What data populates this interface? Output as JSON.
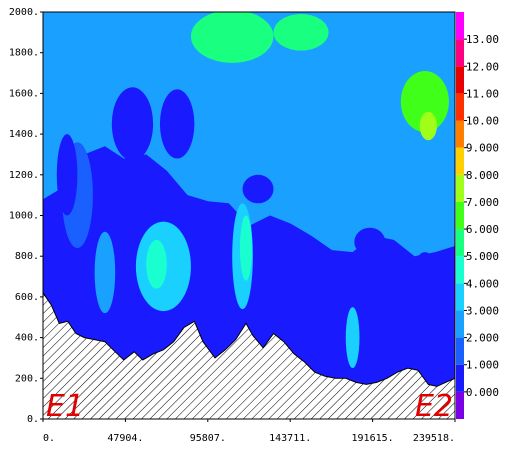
{
  "chart_data": {
    "type": "heatmap",
    "title": "",
    "xlabel": "",
    "ylabel": "",
    "x_ticks": [
      "0.",
      "47904.",
      "95807.",
      "143711.",
      "191615.",
      "239518."
    ],
    "y_ticks": [
      "0.",
      "200.",
      "400.",
      "600.",
      "800.",
      "1000.",
      "1200.",
      "1400.",
      "1600.",
      "1800.",
      "2000."
    ],
    "xlim": [
      0,
      239518
    ],
    "ylim": [
      0,
      2000
    ],
    "levels": [
      "0.000",
      "1.000",
      "2.000",
      "3.000",
      "4.000",
      "5.000",
      "6.000",
      "7.000",
      "8.000",
      "9.000",
      "10.00",
      "11.00",
      "12.00",
      "13.00"
    ],
    "level_colors": [
      "#7a00e6",
      "#1a1aff",
      "#1a60ff",
      "#1aa0ff",
      "#19d0ff",
      "#19ffd0",
      "#19ff80",
      "#40ff19",
      "#a0ff19",
      "#ffd000",
      "#ff8000",
      "#ff3000",
      "#e60000",
      "#ff0080",
      "#ff00ff"
    ],
    "annotations": [
      "E1",
      "E2"
    ],
    "terrain": [
      [
        0,
        620
      ],
      [
        4800,
        560
      ],
      [
        9500,
        470
      ],
      [
        14400,
        480
      ],
      [
        19200,
        420
      ],
      [
        24000,
        400
      ],
      [
        30000,
        390
      ],
      [
        36000,
        380
      ],
      [
        42000,
        330
      ],
      [
        47000,
        290
      ],
      [
        53000,
        330
      ],
      [
        58000,
        290
      ],
      [
        64000,
        320
      ],
      [
        70000,
        340
      ],
      [
        76000,
        380
      ],
      [
        82000,
        450
      ],
      [
        88000,
        480
      ],
      [
        93000,
        380
      ],
      [
        100000,
        300
      ],
      [
        106000,
        340
      ],
      [
        112000,
        390
      ],
      [
        118000,
        470
      ],
      [
        122000,
        410
      ],
      [
        128000,
        350
      ],
      [
        134000,
        420
      ],
      [
        140000,
        380
      ],
      [
        146000,
        320
      ],
      [
        152000,
        280
      ],
      [
        158000,
        230
      ],
      [
        164000,
        210
      ],
      [
        170000,
        200
      ],
      [
        176000,
        200
      ],
      [
        182000,
        180
      ],
      [
        188000,
        170
      ],
      [
        194000,
        180
      ],
      [
        200000,
        200
      ],
      [
        206000,
        230
      ],
      [
        212000,
        250
      ],
      [
        218000,
        240
      ],
      [
        224000,
        170
      ],
      [
        229000,
        160
      ],
      [
        234000,
        180
      ],
      [
        239518,
        200
      ]
    ],
    "contour_bands": [
      {
        "level": 1,
        "upper": [
          [
            0,
            1080
          ],
          [
            12000,
            1140
          ],
          [
            24000,
            1300
          ],
          [
            36000,
            1340
          ],
          [
            47000,
            1280
          ],
          [
            60000,
            1300
          ],
          [
            72000,
            1220
          ],
          [
            84000,
            1100
          ],
          [
            96000,
            1070
          ],
          [
            108000,
            1060
          ],
          [
            120000,
            950
          ],
          [
            132000,
            1000
          ],
          [
            144000,
            960
          ],
          [
            156000,
            900
          ],
          [
            168000,
            830
          ],
          [
            180000,
            820
          ],
          [
            192000,
            900
          ],
          [
            204000,
            880
          ],
          [
            216000,
            800
          ],
          [
            228000,
            820
          ],
          [
            239518,
            850
          ]
        ]
      },
      {
        "level": 2,
        "upper": [
          [
            0,
            1360
          ],
          [
            12000,
            1420
          ],
          [
            24000,
            1560
          ],
          [
            36000,
            1620
          ],
          [
            47000,
            1500
          ],
          [
            60000,
            1560
          ],
          [
            72000,
            1480
          ],
          [
            84000,
            1360
          ],
          [
            96000,
            1320
          ],
          [
            108000,
            1310
          ],
          [
            120000,
            1230
          ],
          [
            132000,
            1200
          ],
          [
            144000,
            1190
          ],
          [
            156000,
            1120
          ],
          [
            168000,
            1090
          ],
          [
            180000,
            1060
          ],
          [
            192000,
            1110
          ],
          [
            204000,
            1140
          ],
          [
            216000,
            1080
          ],
          [
            228000,
            1080
          ],
          [
            239518,
            1100
          ]
        ]
      },
      {
        "level": 3,
        "upper": [
          [
            0,
            1500
          ],
          [
            12000,
            1580
          ],
          [
            24000,
            1680
          ],
          [
            36000,
            1700
          ],
          [
            47000,
            1640
          ],
          [
            60000,
            1720
          ],
          [
            72000,
            1650
          ],
          [
            84000,
            1540
          ],
          [
            96000,
            1530
          ],
          [
            108000,
            1520
          ],
          [
            120000,
            1400
          ],
          [
            132000,
            1420
          ],
          [
            144000,
            1360
          ],
          [
            156000,
            1320
          ],
          [
            168000,
            1300
          ],
          [
            180000,
            1260
          ],
          [
            192000,
            1330
          ],
          [
            204000,
            1370
          ],
          [
            216000,
            1330
          ],
          [
            228000,
            1290
          ],
          [
            239518,
            1280
          ]
        ]
      },
      {
        "level": 4,
        "upper": [
          [
            0,
            1780
          ],
          [
            12000,
            1820
          ],
          [
            24000,
            1860
          ],
          [
            36000,
            1880
          ],
          [
            47000,
            1820
          ],
          [
            60000,
            1870
          ],
          [
            72000,
            1800
          ],
          [
            84000,
            1740
          ],
          [
            96000,
            1760
          ],
          [
            108000,
            1700
          ],
          [
            120000,
            1620
          ],
          [
            132000,
            1620
          ],
          [
            144000,
            1560
          ],
          [
            156000,
            1580
          ],
          [
            168000,
            1620
          ],
          [
            180000,
            1560
          ],
          [
            192000,
            1600
          ],
          [
            204000,
            1640
          ],
          [
            216000,
            1600
          ],
          [
            228000,
            1560
          ],
          [
            239518,
            1500
          ]
        ]
      },
      {
        "level": 5,
        "upper": [
          [
            0,
            2000
          ],
          [
            12000,
            2000
          ],
          [
            24000,
            2000
          ],
          [
            36000,
            2000
          ],
          [
            47000,
            2000
          ],
          [
            60000,
            2000
          ],
          [
            72000,
            1960
          ],
          [
            84000,
            1920
          ],
          [
            96000,
            1940
          ],
          [
            108000,
            1900
          ],
          [
            120000,
            1840
          ],
          [
            132000,
            1860
          ],
          [
            144000,
            1800
          ],
          [
            156000,
            1820
          ],
          [
            168000,
            1860
          ],
          [
            180000,
            1790
          ],
          [
            192000,
            1820
          ],
          [
            204000,
            1860
          ],
          [
            216000,
            1820
          ],
          [
            228000,
            1760
          ],
          [
            239518,
            1720
          ]
        ]
      },
      {
        "level": 6,
        "upper": [
          [
            0,
            2000
          ],
          [
            60000,
            2000
          ],
          [
            72000,
            2000
          ],
          [
            84000,
            2000
          ],
          [
            96000,
            2000
          ],
          [
            108000,
            2000
          ],
          [
            120000,
            2000
          ],
          [
            132000,
            2000
          ],
          [
            144000,
            2000
          ],
          [
            156000,
            2000
          ],
          [
            168000,
            2000
          ],
          [
            180000,
            2000
          ],
          [
            192000,
            2000
          ],
          [
            204000,
            2000
          ],
          [
            216000,
            2000
          ],
          [
            228000,
            2000
          ],
          [
            239518,
            2000
          ]
        ]
      }
    ],
    "blobs": [
      {
        "level": 1,
        "cx": 20000,
        "cy": 1100,
        "rx": 9000,
        "ry": 260
      },
      {
        "level": 0,
        "cx": 52000,
        "cy": 1450,
        "rx": 12000,
        "ry": 180
      },
      {
        "level": 0,
        "cx": 78000,
        "cy": 1450,
        "rx": 10000,
        "ry": 170
      },
      {
        "level": 0,
        "cx": 14000,
        "cy": 1200,
        "rx": 6000,
        "ry": 200
      },
      {
        "level": 0,
        "cx": 125000,
        "cy": 1130,
        "rx": 9000,
        "ry": 70
      },
      {
        "level": 0,
        "cx": 190000,
        "cy": 870,
        "rx": 9000,
        "ry": 70
      },
      {
        "level": 0,
        "cx": 222000,
        "cy": 760,
        "rx": 5000,
        "ry": 60
      },
      {
        "level": 0,
        "cx": 120000,
        "cy": 520,
        "rx": 6000,
        "ry": 90
      },
      {
        "level": 0,
        "cx": 148000,
        "cy": 560,
        "rx": 7000,
        "ry": 120
      },
      {
        "level": 3,
        "cx": 70000,
        "cy": 750,
        "rx": 16000,
        "ry": 220
      },
      {
        "level": 3,
        "cx": 116000,
        "cy": 800,
        "rx": 6000,
        "ry": 260
      },
      {
        "level": 3,
        "cx": 180000,
        "cy": 400,
        "rx": 4000,
        "ry": 150
      },
      {
        "level": 2,
        "cx": 36000,
        "cy": 720,
        "rx": 6000,
        "ry": 200
      },
      {
        "level": 4,
        "cx": 118000,
        "cy": 840,
        "rx": 3500,
        "ry": 160
      },
      {
        "level": 4,
        "cx": 66000,
        "cy": 760,
        "rx": 6000,
        "ry": 120
      },
      {
        "level": 5,
        "cx": 110000,
        "cy": 1880,
        "rx": 24000,
        "ry": 130
      },
      {
        "level": 5,
        "cx": 150000,
        "cy": 1900,
        "rx": 16000,
        "ry": 90
      },
      {
        "level": 6,
        "cx": 222000,
        "cy": 1560,
        "rx": 14000,
        "ry": 150
      },
      {
        "level": 7,
        "cx": 224000,
        "cy": 1440,
        "rx": 5000,
        "ry": 70
      }
    ]
  }
}
